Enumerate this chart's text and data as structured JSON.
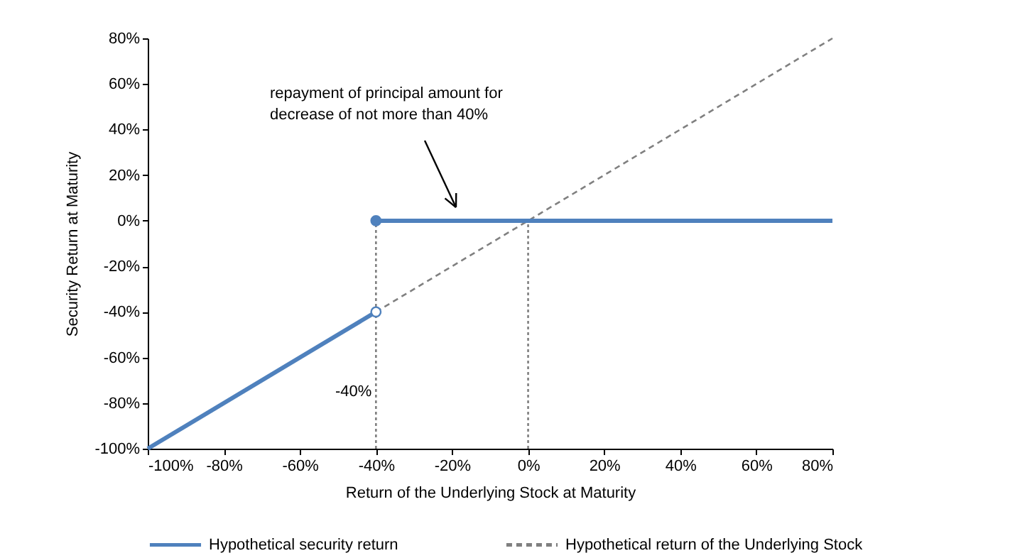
{
  "chart_data": {
    "type": "line",
    "xlabel": "Return of the Underlying Stock at Maturity",
    "ylabel": "Security Return at Maturity",
    "xlim": [
      -100,
      80
    ],
    "ylim": [
      -100,
      80
    ],
    "xticks": [
      {
        "value": -100,
        "label": "-100%"
      },
      {
        "value": -80,
        "label": "-80%"
      },
      {
        "value": -60,
        "label": "-60%"
      },
      {
        "value": -40,
        "label": "-40%"
      },
      {
        "value": -20,
        "label": "-20%"
      },
      {
        "value": 0,
        "label": "0%"
      },
      {
        "value": 20,
        "label": "20%"
      },
      {
        "value": 40,
        "label": "40%"
      },
      {
        "value": 60,
        "label": "60%"
      },
      {
        "value": 80,
        "label": "80%"
      }
    ],
    "yticks": [
      {
        "value": -100,
        "label": "-100%"
      },
      {
        "value": -80,
        "label": "-80%"
      },
      {
        "value": -60,
        "label": "-60%"
      },
      {
        "value": -40,
        "label": "-40%"
      },
      {
        "value": -20,
        "label": "-20%"
      },
      {
        "value": 0,
        "label": "0%"
      },
      {
        "value": 20,
        "label": "20%"
      },
      {
        "value": 40,
        "label": "40%"
      },
      {
        "value": 60,
        "label": "60%"
      },
      {
        "value": 80,
        "label": "80%"
      }
    ],
    "grid": false,
    "legend": "bottom",
    "series": [
      {
        "color": "#808080",
        "line_style": "dotted",
        "x": [
          -40,
          -40
        ],
        "values": [
          -100,
          0
        ]
      },
      {
        "color": "#808080",
        "line_style": "dotted",
        "x": [
          0,
          0
        ],
        "values": [
          -100,
          0
        ]
      },
      {
        "name": "Hypothetical security return",
        "color": "#4f81bd",
        "line_style": "solid",
        "x": [
          -100,
          -40
        ],
        "values": [
          -100,
          -40
        ]
      },
      {
        "name": "Hypothetical return of the Underlying Stock",
        "color": "#808080",
        "line_style": "dashed",
        "x": [
          -40,
          80
        ],
        "values": [
          -40,
          80
        ]
      },
      {
        "color": "#4f81bd",
        "line_style": "solid",
        "x": [
          -40,
          80
        ],
        "values": [
          0,
          0
        ]
      },
      {
        "type": "scatter",
        "color": "#4f81bd",
        "marker": "circle",
        "x": [
          -40
        ],
        "values": [
          0
        ]
      },
      {
        "type": "scatter",
        "color": "#ffffff",
        "marker": "circle",
        "x": [
          -40
        ],
        "values": [
          -40
        ]
      }
    ],
    "annotations": [
      "repayment of principal amount for\ndecrease of not more than 40%",
      {
        "text": "-40%",
        "x": -40,
        "y": -75
      }
    ]
  }
}
